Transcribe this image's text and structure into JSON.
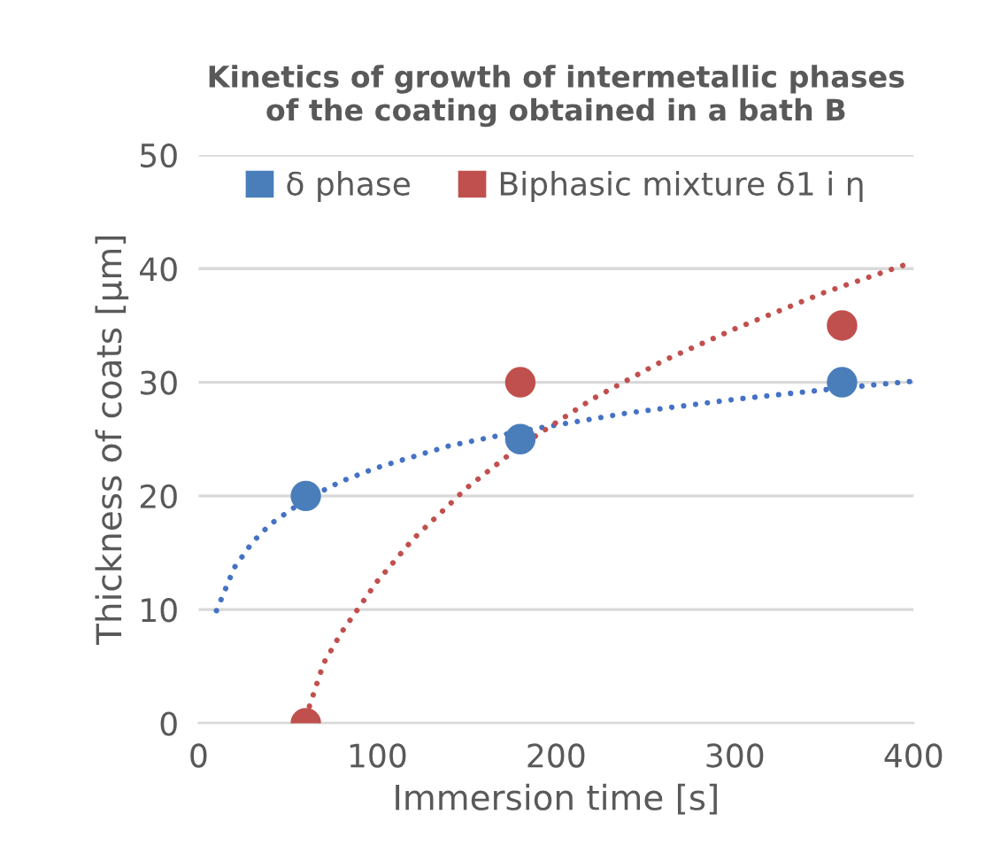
{
  "chart_data": {
    "type": "scatter",
    "title": "Kinetics of growth of intermetallic phases\nof the coating obtained in a bath B",
    "xlabel": "Immersion time [s]",
    "ylabel": "Thickness of coats [µm]",
    "xlim": [
      0,
      400
    ],
    "xticks": [
      0,
      100,
      200,
      300,
      400
    ],
    "ylim": [
      0,
      50
    ],
    "yticks": [
      0,
      10,
      20,
      30,
      40,
      50
    ],
    "grid": "y",
    "legend": "top",
    "marker": "circle",
    "series": [
      {
        "type": "line",
        "color": "#4472c4",
        "line_style": "dotted",
        "marker": "none",
        "x": [
          10,
          20,
          30,
          40,
          60,
          80,
          100,
          140,
          180,
          240,
          300,
          360,
          400
        ],
        "values": [
          9.9,
          13.7,
          15.9,
          17.5,
          19.7,
          21.3,
          22.5,
          24.4,
          25.7,
          27.3,
          28.5,
          29.5,
          30.1
        ]
      },
      {
        "type": "line",
        "color": "#c0504d",
        "line_style": "dotted",
        "marker": "none",
        "x": [
          62,
          70,
          80,
          100,
          120,
          150,
          180,
          220,
          260,
          300,
          350,
          400
        ],
        "values": [
          1.5,
          5.3,
          8.0,
          12.5,
          16.2,
          20.7,
          24.4,
          28.5,
          31.9,
          34.7,
          37.9,
          40.6
        ]
      },
      {
        "name": "δ phase",
        "color": "#4a7ebb",
        "x": [
          60,
          180,
          360
        ],
        "values": [
          20,
          25,
          30
        ]
      },
      {
        "name": "Biphasic mixture δ1 i η",
        "color": "#c0504d",
        "x": [
          60,
          180,
          360
        ],
        "values": [
          0,
          30,
          35
        ]
      }
    ]
  }
}
